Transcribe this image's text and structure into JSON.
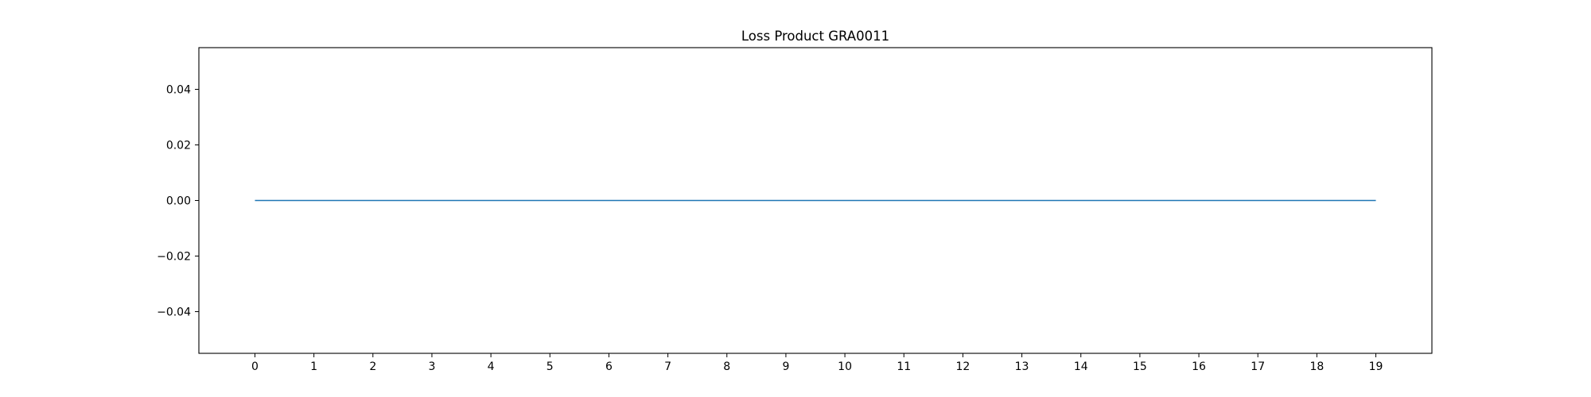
{
  "chart_data": {
    "type": "line",
    "title": "Loss Product GRA0011",
    "xlabel": "",
    "ylabel": "",
    "x": [
      0,
      1,
      2,
      3,
      4,
      5,
      6,
      7,
      8,
      9,
      10,
      11,
      12,
      13,
      14,
      15,
      16,
      17,
      18,
      19
    ],
    "series": [
      {
        "values": [
          0,
          0,
          0,
          0,
          0,
          0,
          0,
          0,
          0,
          0,
          0,
          0,
          0,
          0,
          0,
          0,
          0,
          0,
          0,
          0
        ],
        "color": "#1f77b4"
      }
    ],
    "xlim": [
      -0.95,
      19.95
    ],
    "ylim": [
      -0.055,
      0.055
    ],
    "xticks": [
      0,
      1,
      2,
      3,
      4,
      5,
      6,
      7,
      8,
      9,
      10,
      11,
      12,
      13,
      14,
      15,
      16,
      17,
      18,
      19
    ],
    "xtick_labels": [
      "0",
      "1",
      "2",
      "3",
      "4",
      "5",
      "6",
      "7",
      "8",
      "9",
      "10",
      "11",
      "12",
      "13",
      "14",
      "15",
      "16",
      "17",
      "18",
      "19"
    ],
    "yticks": [
      0.04,
      0.02,
      0.0,
      -0.02,
      -0.04
    ],
    "ytick_labels": [
      "0.04",
      "0.02",
      "0.00",
      "−0.02",
      "−0.04"
    ],
    "grid": false,
    "legend": "none"
  }
}
